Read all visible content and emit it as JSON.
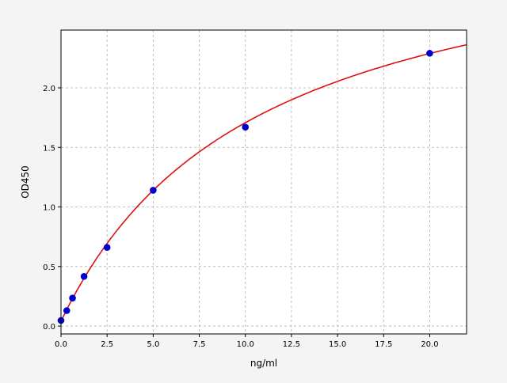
{
  "chart_data": {
    "type": "scatter",
    "title": "",
    "xlabel": "ng/ml",
    "ylabel": "OD450",
    "xlim": [
      0,
      22
    ],
    "ylim": [
      -0.066,
      2.485
    ],
    "xticks": [
      "0.0",
      "2.5",
      "5.0",
      "7.5",
      "10.0",
      "12.5",
      "15.0",
      "17.5",
      "20.0"
    ],
    "yticks": [
      "0.0",
      "0.5",
      "1.0",
      "1.5",
      "2.0"
    ],
    "grid": true,
    "series": [
      {
        "kind": "points",
        "color": "#0000cc",
        "x": [
          0,
          0.3125,
          0.625,
          1.25,
          2.5,
          5,
          10,
          20
        ],
        "y": [
          0.047,
          0.13,
          0.235,
          0.417,
          0.66,
          1.14,
          1.67,
          2.29
        ]
      },
      {
        "kind": "fitted-curve",
        "color": "#dd1111"
      }
    ],
    "colors": {
      "background": "#f4f4f4",
      "plot": "#ffffff",
      "grid": "#b0b0b0"
    }
  }
}
